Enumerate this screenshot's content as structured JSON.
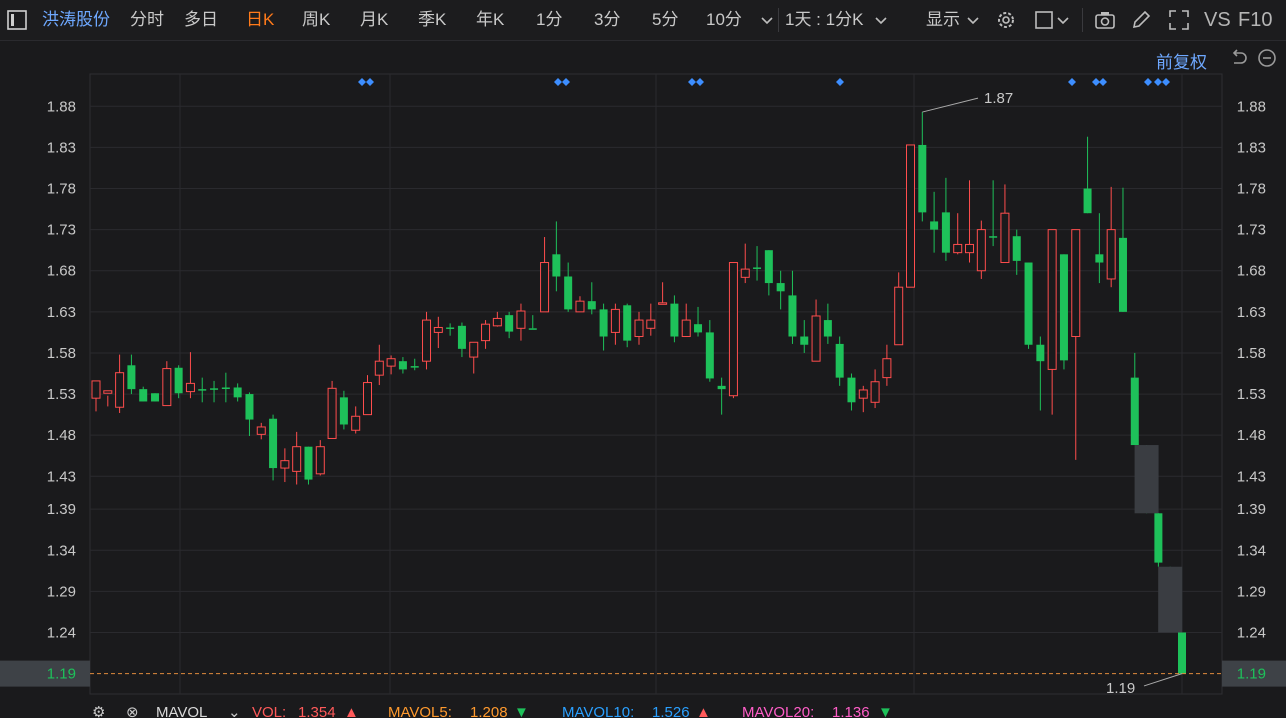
{
  "toolbar": {
    "stock_name": "洪涛股份",
    "tabs": [
      "分时",
      "多日",
      "日K",
      "周K",
      "月K",
      "季K",
      "年K",
      "1分",
      "3分",
      "5分",
      "10分"
    ],
    "active_tab": "日K",
    "period_select": "1天 : 1分K",
    "display_label": "显示",
    "vs_label": "VS",
    "f10_label": "F10"
  },
  "chart_header": {
    "adjust_label": "前复权"
  },
  "colors": {
    "up": "#ff4d4d",
    "down": "#1ec15a",
    "grid": "#2a2a2e",
    "marker": "#3d8eff",
    "current_price_line": "#e08a3c",
    "stock_link": "#6ea8ff",
    "active_tab": "#ff7a1a"
  },
  "chart_data": {
    "type": "candlestick",
    "ylim": [
      1.1652,
      1.9193
    ],
    "yticks": [
      1.88,
      1.83,
      1.78,
      1.73,
      1.68,
      1.63,
      1.58,
      1.53,
      1.48,
      1.43,
      1.39,
      1.34,
      1.29,
      1.24,
      1.19
    ],
    "current_price": "1.19",
    "max_label": "1.87",
    "min_label": "1.19",
    "markers": [
      370,
      566,
      700,
      840,
      1072,
      1103,
      1158
    ],
    "candles": [
      [
        1.525,
        1.546,
        1.525,
        1.509
      ],
      [
        1.531,
        1.534,
        1.528,
        1.515
      ],
      [
        1.514,
        1.556,
        1.578,
        1.507
      ],
      [
        1.565,
        1.536,
        1.578,
        1.53
      ],
      [
        1.536,
        1.521,
        1.539,
        1.521
      ],
      [
        1.531,
        1.521,
        1.531,
        1.521
      ],
      [
        1.516,
        1.561,
        1.57,
        1.516
      ],
      [
        1.562,
        1.531,
        1.565,
        1.525
      ],
      [
        1.533,
        1.543,
        1.581,
        1.525
      ],
      [
        1.536,
        1.536,
        1.55,
        1.52
      ],
      [
        1.537,
        1.537,
        1.546,
        1.52
      ],
      [
        1.538,
        1.538,
        1.556,
        1.52
      ],
      [
        1.538,
        1.526,
        1.543,
        1.521
      ],
      [
        1.53,
        1.499,
        1.532,
        1.479
      ],
      [
        1.481,
        1.49,
        1.495,
        1.475
      ],
      [
        1.5,
        1.44,
        1.505,
        1.425
      ],
      [
        1.44,
        1.449,
        1.464,
        1.423
      ],
      [
        1.436,
        1.466,
        1.484,
        1.42
      ],
      [
        1.466,
        1.426,
        1.466,
        1.42
      ],
      [
        1.433,
        1.466,
        1.474,
        1.431
      ],
      [
        1.476,
        1.537,
        1.546,
        1.476
      ],
      [
        1.526,
        1.493,
        1.534,
        1.487
      ],
      [
        1.486,
        1.503,
        1.515,
        1.482
      ],
      [
        1.505,
        1.544,
        1.553,
        1.505
      ],
      [
        1.553,
        1.57,
        1.59,
        1.541
      ],
      [
        1.564,
        1.573,
        1.577,
        1.554
      ],
      [
        1.57,
        1.56,
        1.575,
        1.555
      ],
      [
        1.564,
        1.564,
        1.573,
        1.559
      ],
      [
        1.57,
        1.62,
        1.63,
        1.56
      ],
      [
        1.605,
        1.611,
        1.624,
        1.586
      ],
      [
        1.611,
        1.611,
        1.616,
        1.601
      ],
      [
        1.613,
        1.585,
        1.617,
        1.575
      ],
      [
        1.575,
        1.593,
        1.593,
        1.555
      ],
      [
        1.595,
        1.615,
        1.62,
        1.585
      ],
      [
        1.613,
        1.622,
        1.63,
        1.612
      ],
      [
        1.626,
        1.606,
        1.63,
        1.598
      ],
      [
        1.61,
        1.631,
        1.64,
        1.595
      ],
      [
        1.61,
        1.61,
        1.626,
        1.61
      ],
      [
        1.63,
        1.69,
        1.721,
        1.63
      ],
      [
        1.7,
        1.673,
        1.74,
        1.655
      ],
      [
        1.673,
        1.633,
        1.69,
        1.63
      ],
      [
        1.63,
        1.643,
        1.649,
        1.63
      ],
      [
        1.643,
        1.633,
        1.666,
        1.627
      ],
      [
        1.633,
        1.6,
        1.64,
        1.583
      ],
      [
        1.605,
        1.633,
        1.64,
        1.59
      ],
      [
        1.638,
        1.595,
        1.64,
        1.587
      ],
      [
        1.6,
        1.62,
        1.63,
        1.59
      ],
      [
        1.61,
        1.62,
        1.64,
        1.601
      ],
      [
        1.64,
        1.641,
        1.666,
        1.64
      ],
      [
        1.64,
        1.6,
        1.65,
        1.593
      ],
      [
        1.6,
        1.62,
        1.64,
        1.6
      ],
      [
        1.615,
        1.605,
        1.636,
        1.6
      ],
      [
        1.605,
        1.549,
        1.62,
        1.545
      ],
      [
        1.54,
        1.536,
        1.55,
        1.505
      ],
      [
        1.528,
        1.69,
        1.69,
        1.525
      ],
      [
        1.672,
        1.682,
        1.713,
        1.665
      ],
      [
        1.684,
        1.684,
        1.71,
        1.668
      ],
      [
        1.705,
        1.665,
        1.705,
        1.65
      ],
      [
        1.665,
        1.655,
        1.68,
        1.633
      ],
      [
        1.65,
        1.6,
        1.68,
        1.591
      ],
      [
        1.6,
        1.59,
        1.62,
        1.58
      ],
      [
        1.57,
        1.625,
        1.645,
        1.57
      ],
      [
        1.62,
        1.6,
        1.64,
        1.591
      ],
      [
        1.591,
        1.55,
        1.6,
        1.54
      ],
      [
        1.55,
        1.52,
        1.555,
        1.51
      ],
      [
        1.525,
        1.535,
        1.54,
        1.508
      ],
      [
        1.52,
        1.545,
        1.56,
        1.513
      ],
      [
        1.55,
        1.573,
        1.59,
        1.54
      ],
      [
        1.59,
        1.66,
        1.678,
        1.59
      ],
      [
        1.66,
        1.833,
        1.833,
        1.66
      ],
      [
        1.833,
        1.751,
        1.873,
        1.74
      ],
      [
        1.74,
        1.73,
        1.776,
        1.702
      ],
      [
        1.751,
        1.702,
        1.793,
        1.692
      ],
      [
        1.702,
        1.712,
        1.75,
        1.7
      ],
      [
        1.702,
        1.712,
        1.79,
        1.69
      ],
      [
        1.68,
        1.73,
        1.741,
        1.67
      ],
      [
        1.722,
        1.721,
        1.79,
        1.71
      ],
      [
        1.69,
        1.75,
        1.785,
        1.69
      ],
      [
        1.722,
        1.692,
        1.73,
        1.675
      ],
      [
        1.69,
        1.59,
        1.69,
        1.585
      ],
      [
        1.59,
        1.57,
        1.6,
        1.51
      ],
      [
        1.56,
        1.73,
        1.73,
        1.505
      ],
      [
        1.7,
        1.571,
        1.7,
        1.56
      ],
      [
        1.6,
        1.73,
        1.73,
        1.45
      ],
      [
        1.78,
        1.75,
        1.843,
        1.75
      ],
      [
        1.7,
        1.69,
        1.75,
        1.665
      ],
      [
        1.67,
        1.73,
        1.782,
        1.66
      ],
      [
        1.72,
        1.63,
        1.781,
        1.63
      ],
      [
        1.55,
        1.468,
        1.58,
        1.468
      ],
      [
        1.468,
        1.385,
        1.468,
        1.385
      ],
      [
        1.385,
        1.325,
        1.385,
        1.32
      ],
      [
        1.32,
        1.24,
        1.32,
        1.24
      ],
      [
        1.24,
        1.19,
        1.24,
        1.19
      ]
    ]
  },
  "indicators": {
    "name": "MAVOL",
    "vol_label": "VOL:",
    "vol_value": "1.354",
    "ma5_label": "MAVOL5:",
    "ma5_value": "1.208",
    "ma10_label": "MAVOL10:",
    "ma10_value": "1.526",
    "ma20_label": "MAVOL20:",
    "ma20_value": "1.136"
  }
}
